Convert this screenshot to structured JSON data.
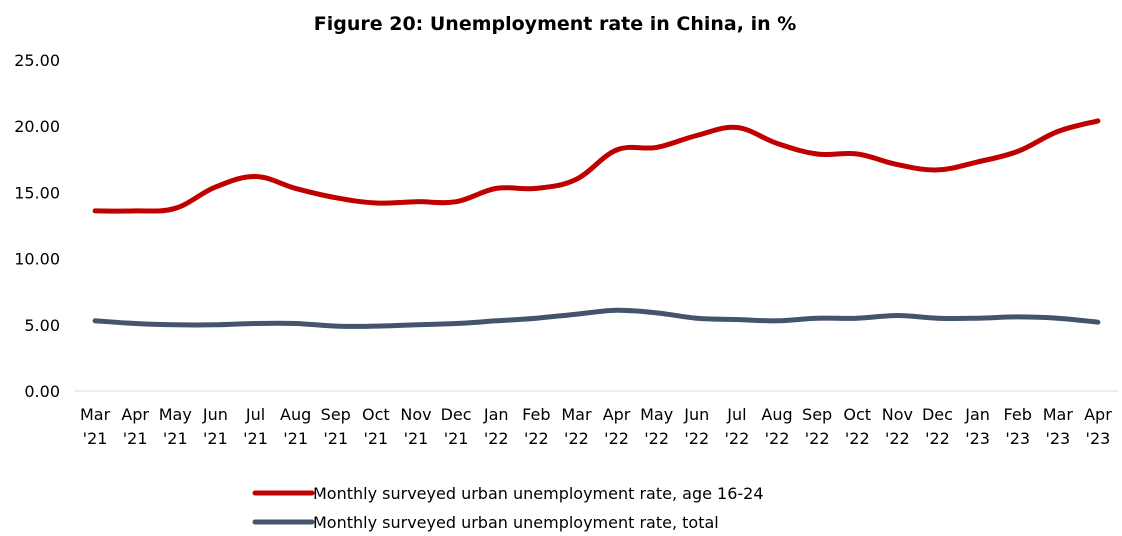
{
  "chart_data": {
    "type": "line",
    "title": "Figure 20: Unemployment rate in China, in %",
    "xlabel": "",
    "ylabel": "",
    "categories": [
      [
        "Mar",
        "'21"
      ],
      [
        "Apr",
        "'21"
      ],
      [
        "May",
        "'21"
      ],
      [
        "Jun",
        "'21"
      ],
      [
        "Jul",
        "'21"
      ],
      [
        "Aug",
        "'21"
      ],
      [
        "Sep",
        "'21"
      ],
      [
        "Oct",
        "'21"
      ],
      [
        "Nov",
        "'21"
      ],
      [
        "Dec",
        "'21"
      ],
      [
        "Jan",
        "'22"
      ],
      [
        "Feb",
        "'22"
      ],
      [
        "Mar",
        "'22"
      ],
      [
        "Apr",
        "'22"
      ],
      [
        "May",
        "'22"
      ],
      [
        "Jun",
        "'22"
      ],
      [
        "Jul",
        "'22"
      ],
      [
        "Aug",
        "'22"
      ],
      [
        "Sep",
        "'22"
      ],
      [
        "Oct",
        "'22"
      ],
      [
        "Nov",
        "'22"
      ],
      [
        "Dec",
        "'22"
      ],
      [
        "Jan",
        "'23"
      ],
      [
        "Feb",
        "'23"
      ],
      [
        "Mar",
        "'23"
      ],
      [
        "Apr",
        "'23"
      ]
    ],
    "y_ticks": [
      "0.00",
      "5.00",
      "10.00",
      "15.00",
      "20.00",
      "25.00"
    ],
    "ylim": [
      0,
      25
    ],
    "grid": false,
    "legend_position": "bottom",
    "series": [
      {
        "name": "Monthly surveyed urban unemployment rate, age 16-24",
        "color": "#c00000",
        "values": [
          13.6,
          13.6,
          13.8,
          15.4,
          16.2,
          15.3,
          14.6,
          14.2,
          14.3,
          14.3,
          15.3,
          15.3,
          16.0,
          18.2,
          18.4,
          19.3,
          19.9,
          18.7,
          17.9,
          17.9,
          17.1,
          16.7,
          17.3,
          18.1,
          19.6,
          20.4
        ]
      },
      {
        "name": "Monthly surveyed urban unemployment rate, total",
        "color": "#44546a",
        "values": [
          5.3,
          5.1,
          5.0,
          5.0,
          5.1,
          5.1,
          4.9,
          4.9,
          5.0,
          5.1,
          5.3,
          5.5,
          5.8,
          6.1,
          5.9,
          5.5,
          5.4,
          5.3,
          5.5,
          5.5,
          5.7,
          5.5,
          5.5,
          5.6,
          5.5,
          5.2
        ]
      }
    ]
  }
}
